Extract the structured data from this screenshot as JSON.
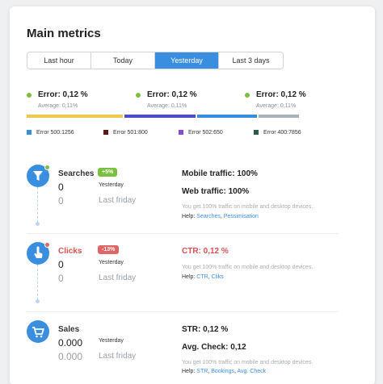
{
  "title": "Main metrics",
  "tabs": [
    "Last hour",
    "Today",
    "Yesterday",
    "Last 3 days"
  ],
  "active_tab": 2,
  "errors": [
    {
      "label": "Error: 0,12 %",
      "avg": "Average: 0,11%"
    },
    {
      "label": "Error: 0,12 %",
      "avg": "Average: 0,11%"
    },
    {
      "label": "Error: 0,12 %",
      "avg": "Average: 0,11%"
    }
  ],
  "bar_segments": [
    {
      "color": "#f2c94c",
      "share": 0.345
    },
    {
      "color": "#4c4fc4",
      "share": 0.255
    },
    {
      "color": "#3a8ee0",
      "share": 0.215
    },
    {
      "color": "#aab2b9",
      "share": 0.145
    }
  ],
  "legend": [
    {
      "label": "Error 500:1256",
      "color": "#3a8ee0"
    },
    {
      "label": "Error 501:800",
      "color": "#5a1a14"
    },
    {
      "label": "Error 502:650",
      "color": "#8e45d6"
    },
    {
      "label": "Error 400:7856",
      "color": "#2c5a44"
    }
  ],
  "sections": {
    "searches": {
      "name": "Searches",
      "icon": "funnel-icon",
      "change": "+5%",
      "change_color": "#7bbf3f",
      "value": "0",
      "value_label": "Yesterday",
      "prev": "0",
      "prev_label": "Last friday",
      "right1": "Mobile traffic: 100%",
      "right2": "Web traffic: 100%",
      "note": "You get 100% traffic on mobile and desktop devices.",
      "help": "Help:",
      "links": [
        "Searches",
        "Pessimisation"
      ]
    },
    "clicks": {
      "name": "Clicks",
      "icon": "hand-pointer-icon",
      "change": "-13%",
      "change_color": "#e06666",
      "value": "0",
      "value_label": "Yesterday",
      "prev": "0",
      "prev_label": "Last friday",
      "right1": "CTR: 0,12 %",
      "note": "You get 100% traffic on mobile and desktop devices.",
      "help": "Help:",
      "links": [
        "CTR",
        "Cliks"
      ]
    },
    "sales": {
      "name": "Sales",
      "icon": "cart-icon",
      "value": "0.000",
      "value_label": "Yesterday",
      "prev": "0.000",
      "prev_label": "Last friday",
      "right1": "STR: 0,12 %",
      "right2": "Avg. Check: 0,12",
      "note": "You get 100% traffic on mobile and desktop devices.",
      "help": "Help:",
      "links": [
        "STR",
        "Bookings",
        "Avg. Check"
      ]
    }
  }
}
